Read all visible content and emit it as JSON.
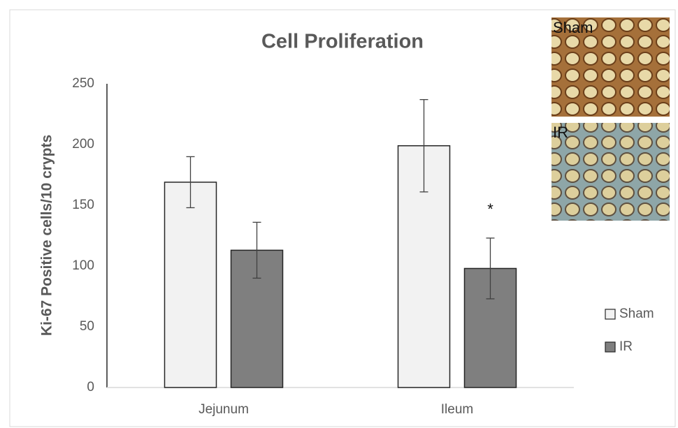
{
  "chart_data": {
    "type": "bar",
    "title": "Cell Proliferation",
    "y_label": "Ki-67 Positive cells/10 crypts",
    "categories": [
      "Jejunum",
      "Ileum"
    ],
    "series": [
      {
        "name": "Sham",
        "color": "#f2f2f2",
        "values": [
          169,
          199
        ],
        "errors": [
          21,
          38
        ]
      },
      {
        "name": "IR",
        "color": "#7f7f7f",
        "values": [
          113,
          98
        ],
        "errors": [
          23,
          25
        ]
      }
    ],
    "ylim": [
      0,
      250
    ],
    "yticks": [
      0,
      50,
      100,
      150,
      200,
      250
    ],
    "grid": false,
    "legend": "right",
    "annotations": [
      {
        "text": "*",
        "series": 1,
        "category": 1
      }
    ],
    "image_labels": [
      "Sham",
      "IR"
    ]
  }
}
